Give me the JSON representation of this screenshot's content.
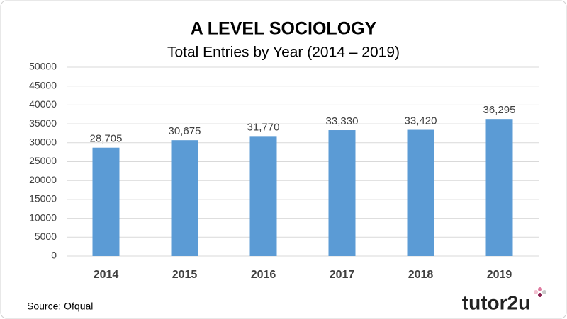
{
  "chart_data": {
    "type": "bar",
    "title": "A LEVEL SOCIOLOGY",
    "subtitle": "Total Entries by Year (2014 – 2019)",
    "categories": [
      "2014",
      "2015",
      "2016",
      "2017",
      "2018",
      "2019"
    ],
    "values": [
      28705,
      30675,
      31770,
      33330,
      33420,
      36295
    ],
    "value_labels": [
      "28,705",
      "30,675",
      "31,770",
      "33,330",
      "33,420",
      "36,295"
    ],
    "color": "#5b9bd5",
    "ylim": [
      0,
      50000
    ],
    "yticks": [
      0,
      5000,
      10000,
      15000,
      20000,
      25000,
      30000,
      35000,
      40000,
      45000,
      50000
    ],
    "grid": true
  },
  "source": "Source: Ofqual",
  "logo": "tutor2u"
}
